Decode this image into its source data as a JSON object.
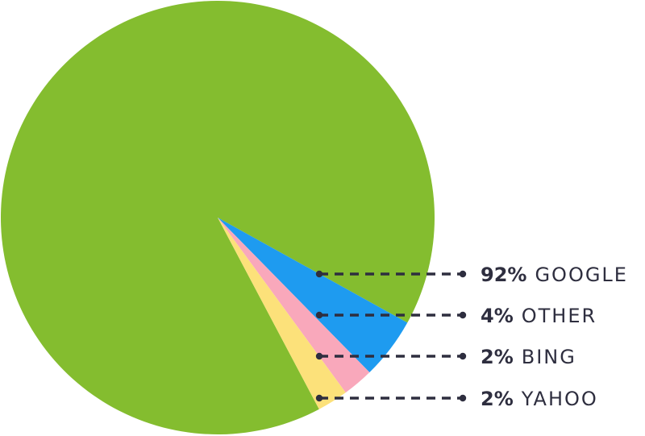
{
  "chart_data": {
    "type": "pie",
    "title": "",
    "slices": [
      {
        "label": "GOOGLE",
        "value": 92,
        "pct_text": "92%",
        "color": "#84bd2f"
      },
      {
        "label": "OTHER",
        "value": 4,
        "pct_text": "4%",
        "color": "#1e9bf0"
      },
      {
        "label": "BING",
        "value": 2,
        "pct_text": "2%",
        "color": "#f9a8bb"
      },
      {
        "label": "YAHOO",
        "value": 2,
        "pct_text": "2%",
        "color": "#fce17a"
      }
    ],
    "legend": "right, with dashed leader lines",
    "leader_color": "#2e2e3f"
  }
}
